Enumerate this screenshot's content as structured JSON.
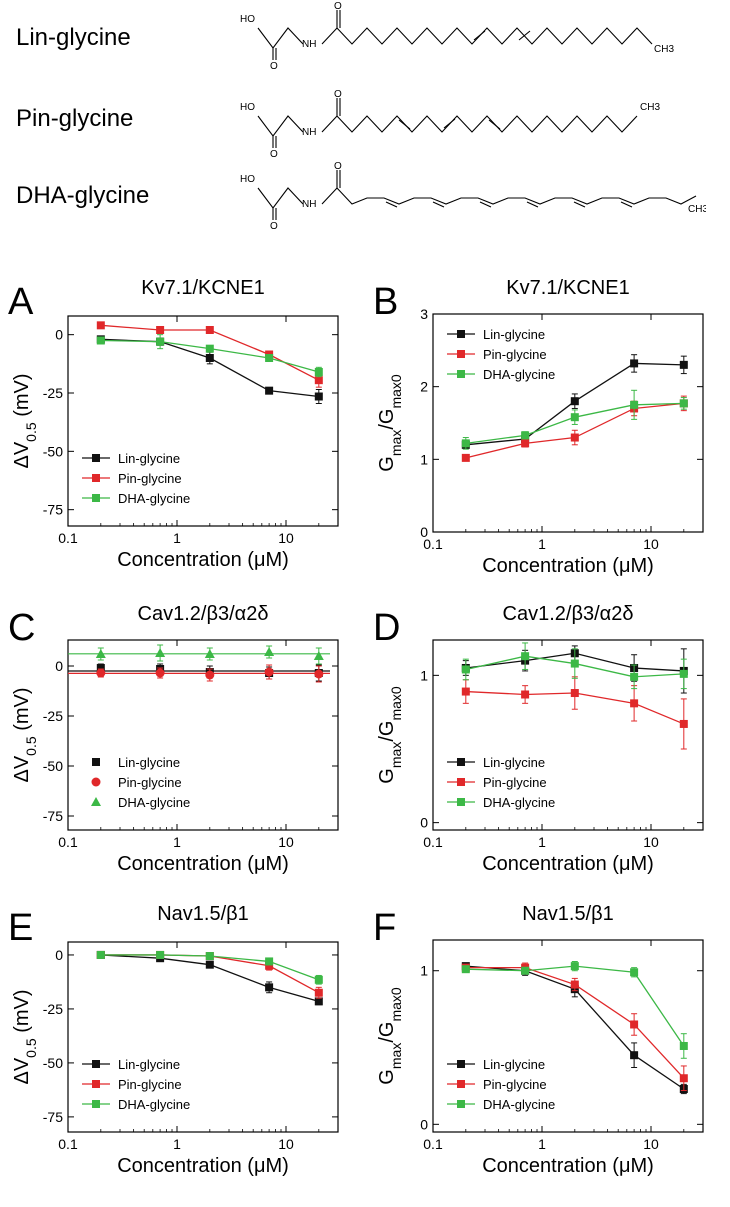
{
  "molecules": [
    {
      "name": "Lin-glycine",
      "atoms": {
        "ho": "HO",
        "nh": "NH",
        "o_acid": "O",
        "o_amide": "O",
        "ch3": "CH3"
      }
    },
    {
      "name": "Pin-glycine",
      "atoms": {
        "ho": "HO",
        "nh": "NH",
        "o_acid": "O",
        "o_amide": "O",
        "ch3": "CH3"
      }
    },
    {
      "name": "DHA-glycine",
      "atoms": {
        "ho": "HO",
        "nh": "NH",
        "o_acid": "O",
        "o_amide": "O",
        "ch3": "CH3"
      }
    }
  ],
  "colors": {
    "lin": "#111111",
    "pin": "#e0282a",
    "dha": "#3cb846"
  },
  "chart_data": [
    {
      "letter": "A",
      "type": "line",
      "title": "Kv7.1/KCNE1",
      "xlabel": "Concentration (μM)",
      "ylabel": "ΔV0.5 (mV)",
      "xscale": "log",
      "xlim": [
        0.1,
        30
      ],
      "ylim": [
        -82,
        8
      ],
      "xticks": [
        0.1,
        1,
        10
      ],
      "yticks": [
        0,
        -25,
        -50,
        -75
      ],
      "legend_position": "bottom-left",
      "marker_style": "line",
      "series": [
        {
          "name": "Lin-glycine",
          "color": "#111111",
          "marker": "square",
          "x": [
            0.2,
            0.7,
            2,
            7,
            20
          ],
          "y": [
            -2,
            -3,
            -10,
            -24,
            -26.5
          ],
          "err": [
            1,
            1.5,
            2.5,
            1.2,
            3
          ]
        },
        {
          "name": "Pin-glycine",
          "color": "#e0282a",
          "marker": "square",
          "x": [
            0.2,
            0.7,
            2,
            7,
            20
          ],
          "y": [
            4,
            2,
            2,
            -8.5,
            -19.5
          ],
          "err": [
            0.5,
            0.5,
            0.5,
            1,
            3
          ]
        },
        {
          "name": "DHA-glycine",
          "color": "#3cb846",
          "marker": "square",
          "x": [
            0.2,
            0.7,
            2,
            7,
            20
          ],
          "y": [
            -2.5,
            -3,
            -6,
            -10,
            -16
          ],
          "err": [
            1,
            3,
            1,
            1,
            2
          ]
        }
      ]
    },
    {
      "letter": "B",
      "type": "line",
      "title": "Kv7.1/KCNE1",
      "xlabel": "Concentration (μM)",
      "ylabel": "Gmax/Gmax0",
      "xscale": "log",
      "xlim": [
        0.1,
        30
      ],
      "ylim": [
        0,
        3
      ],
      "xticks": [
        0.1,
        1,
        10
      ],
      "yticks": [
        0,
        1,
        2,
        3
      ],
      "legend_position": "top-left",
      "marker_style": "line",
      "series": [
        {
          "name": "Lin-glycine",
          "color": "#111111",
          "marker": "square",
          "x": [
            0.2,
            0.7,
            2,
            7,
            20
          ],
          "y": [
            1.2,
            1.28,
            1.8,
            2.32,
            2.3
          ],
          "err": [
            0.05,
            0.05,
            0.1,
            0.12,
            0.12
          ]
        },
        {
          "name": "Pin-glycine",
          "color": "#e0282a",
          "marker": "square",
          "x": [
            0.2,
            0.7,
            2,
            7,
            20
          ],
          "y": [
            1.02,
            1.22,
            1.3,
            1.7,
            1.77
          ],
          "err": [
            0.03,
            0.05,
            0.1,
            0.1,
            0.1
          ]
        },
        {
          "name": "DHA-glycine",
          "color": "#3cb846",
          "marker": "square",
          "x": [
            0.2,
            0.7,
            2,
            7,
            20
          ],
          "y": [
            1.22,
            1.33,
            1.58,
            1.75,
            1.77
          ],
          "err": [
            0.08,
            0.05,
            0.1,
            0.2,
            0.08
          ]
        }
      ]
    },
    {
      "letter": "C",
      "type": "line",
      "title": "Cav1.2/β3/α2δ",
      "xlabel": "Concentration (μM)",
      "ylabel": "ΔV0.5 (mV)",
      "xscale": "log",
      "xlim": [
        0.1,
        30
      ],
      "ylim": [
        -82,
        13
      ],
      "xticks": [
        0.1,
        1,
        10
      ],
      "yticks": [
        0,
        -25,
        -50,
        -75
      ],
      "legend_position": "bottom-left",
      "marker_style": "marker-only",
      "series": [
        {
          "name": "Lin-glycine",
          "color": "#111111",
          "marker": "square",
          "x": [
            0.2,
            0.7,
            2,
            7,
            20
          ],
          "y": [
            -1,
            -1.5,
            -3,
            -3.5,
            -3.5
          ],
          "err": [
            2,
            2.5,
            3,
            3,
            4
          ]
        },
        {
          "name": "Pin-glycine",
          "color": "#e0282a",
          "marker": "circle",
          "x": [
            0.2,
            0.7,
            2,
            7,
            20
          ],
          "y": [
            -3.5,
            -3.5,
            -4.5,
            -3,
            -4
          ],
          "err": [
            2,
            2.5,
            3,
            3.5,
            4
          ]
        },
        {
          "name": "DHA-glycine",
          "color": "#3cb846",
          "marker": "triangle",
          "x": [
            0.2,
            0.7,
            2,
            7,
            20
          ],
          "y": [
            6,
            6.5,
            6,
            7,
            5
          ],
          "err": [
            3,
            4,
            3,
            3,
            4
          ]
        }
      ]
    },
    {
      "letter": "D",
      "type": "line",
      "title": "Cav1.2/β3/α2δ",
      "xlabel": "Concentration (μM)",
      "ylabel": "Gmax/Gmax0",
      "xscale": "log",
      "xlim": [
        0.1,
        30
      ],
      "ylim": [
        -0.05,
        1.24
      ],
      "xticks": [
        0.1,
        1,
        10
      ],
      "yticks": [
        0,
        1
      ],
      "legend_position": "bottom-left",
      "marker_style": "line",
      "series": [
        {
          "name": "Lin-glycine",
          "color": "#111111",
          "marker": "square",
          "x": [
            0.2,
            0.7,
            2,
            7,
            20
          ],
          "y": [
            1.05,
            1.1,
            1.15,
            1.05,
            1.03
          ],
          "err": [
            0.05,
            0.07,
            0.05,
            0.09,
            0.15
          ]
        },
        {
          "name": "Pin-glycine",
          "color": "#e0282a",
          "marker": "square",
          "x": [
            0.2,
            0.7,
            2,
            7,
            20
          ],
          "y": [
            0.89,
            0.87,
            0.88,
            0.81,
            0.67
          ],
          "err": [
            0.08,
            0.06,
            0.11,
            0.12,
            0.17
          ]
        },
        {
          "name": "DHA-glycine",
          "color": "#3cb846",
          "marker": "square",
          "x": [
            0.2,
            0.7,
            2,
            7,
            20
          ],
          "y": [
            1.04,
            1.13,
            1.08,
            0.99,
            1.01
          ],
          "err": [
            0.07,
            0.09,
            0.1,
            0.08,
            0.1
          ]
        }
      ]
    },
    {
      "letter": "E",
      "type": "line",
      "title": "Nav1.5/β1",
      "xlabel": "Concentration (μM)",
      "ylabel": "ΔV0.5 (mV)",
      "xscale": "log",
      "xlim": [
        0.1,
        30
      ],
      "ylim": [
        -82,
        6
      ],
      "xticks": [
        0.1,
        1,
        10
      ],
      "yticks": [
        0,
        -25,
        -50,
        -75
      ],
      "legend_position": "bottom-left",
      "marker_style": "line",
      "series": [
        {
          "name": "Lin-glycine",
          "color": "#111111",
          "marker": "square",
          "x": [
            0.2,
            0.7,
            2,
            7,
            20
          ],
          "y": [
            0,
            -1.5,
            -4.5,
            -15,
            -21.5
          ],
          "err": [
            0.8,
            0.8,
            1.2,
            2.5,
            1.5
          ]
        },
        {
          "name": "Pin-glycine",
          "color": "#e0282a",
          "marker": "square",
          "x": [
            0.2,
            0.7,
            2,
            7,
            20
          ],
          "y": [
            0,
            0,
            -0.5,
            -5,
            -17.5
          ],
          "err": [
            0.8,
            0.8,
            1,
            2,
            2.5
          ]
        },
        {
          "name": "DHA-glycine",
          "color": "#3cb846",
          "marker": "square",
          "x": [
            0.2,
            0.7,
            2,
            7,
            20
          ],
          "y": [
            0,
            0,
            -0.5,
            -3,
            -11.5
          ],
          "err": [
            0.8,
            0.8,
            0.8,
            1.5,
            2
          ]
        }
      ]
    },
    {
      "letter": "F",
      "type": "line",
      "title": "Nav1.5/β1",
      "xlabel": "Concentration (μM)",
      "ylabel": "Gmax/Gmax0",
      "xscale": "log",
      "xlim": [
        0.1,
        30
      ],
      "ylim": [
        -0.05,
        1.2
      ],
      "xticks": [
        0.1,
        1,
        10
      ],
      "yticks": [
        0,
        1
      ],
      "legend_position": "bottom-left",
      "marker_style": "line",
      "series": [
        {
          "name": "Lin-glycine",
          "color": "#111111",
          "marker": "square",
          "x": [
            0.2,
            0.7,
            2,
            7,
            20
          ],
          "y": [
            1.03,
            1.0,
            0.88,
            0.45,
            0.23
          ],
          "err": [
            0.02,
            0.03,
            0.05,
            0.08,
            0.03
          ]
        },
        {
          "name": "Pin-glycine",
          "color": "#e0282a",
          "marker": "square",
          "x": [
            0.2,
            0.7,
            2,
            7,
            20
          ],
          "y": [
            1.02,
            1.02,
            0.91,
            0.65,
            0.3
          ],
          "err": [
            0.02,
            0.03,
            0.04,
            0.07,
            0.08
          ]
        },
        {
          "name": "DHA-glycine",
          "color": "#3cb846",
          "marker": "square",
          "x": [
            0.2,
            0.7,
            2,
            7,
            20
          ],
          "y": [
            1.01,
            1.0,
            1.03,
            0.99,
            0.51
          ],
          "err": [
            0.02,
            0.02,
            0.03,
            0.03,
            0.08
          ]
        }
      ]
    }
  ]
}
